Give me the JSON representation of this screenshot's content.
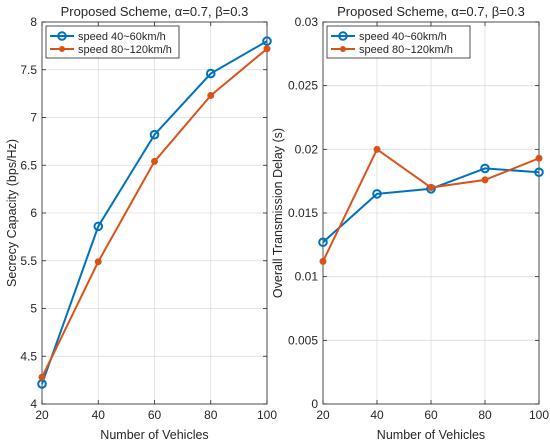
{
  "chart_data": [
    {
      "type": "line",
      "title": "Proposed Scheme, α=0.7, β=0.3",
      "xlabel": "Number of Vehicles",
      "ylabel": "Secrecy Capacity (bps/Hz)",
      "x": [
        20,
        40,
        60,
        80,
        100
      ],
      "xlim": [
        20,
        100
      ],
      "ylim": [
        4,
        8
      ],
      "xticks": [
        "20",
        "40",
        "60",
        "80",
        "100"
      ],
      "yticks": [
        "4",
        "4.5",
        "5",
        "5.5",
        "6",
        "6.5",
        "7",
        "7.5",
        "8"
      ],
      "grid": true,
      "legend_position": "top-left",
      "series": [
        {
          "name": "speed 40~60km/h",
          "color": "#0072BD",
          "marker": "circle-open",
          "values": [
            4.21,
            5.86,
            6.82,
            7.46,
            7.8
          ]
        },
        {
          "name": "speed 80~120km/h",
          "color": "#D95319",
          "marker": "dot",
          "values": [
            4.28,
            5.49,
            6.54,
            7.23,
            7.72
          ]
        }
      ]
    },
    {
      "type": "line",
      "title": "Proposed Scheme, α=0.7, β=0.3",
      "xlabel": "Number of Vehicles",
      "ylabel": "Overall Transmission Delay (s)",
      "x": [
        20,
        40,
        60,
        80,
        100
      ],
      "xlim": [
        20,
        100
      ],
      "ylim": [
        0,
        0.03
      ],
      "xticks": [
        "20",
        "40",
        "60",
        "80",
        "100"
      ],
      "yticks": [
        "0",
        "0.005",
        "0.01",
        "0.015",
        "0.02",
        "0.025",
        "0.03"
      ],
      "grid": true,
      "legend_position": "top-left",
      "series": [
        {
          "name": "speed 40~60km/h",
          "color": "#0072BD",
          "marker": "circle-open",
          "values": [
            0.0127,
            0.0165,
            0.0169,
            0.0185,
            0.0182
          ]
        },
        {
          "name": "speed 80~120km/h",
          "color": "#D95319",
          "marker": "dot",
          "values": [
            0.0112,
            0.02,
            0.017,
            0.0176,
            0.0193
          ]
        }
      ]
    }
  ]
}
